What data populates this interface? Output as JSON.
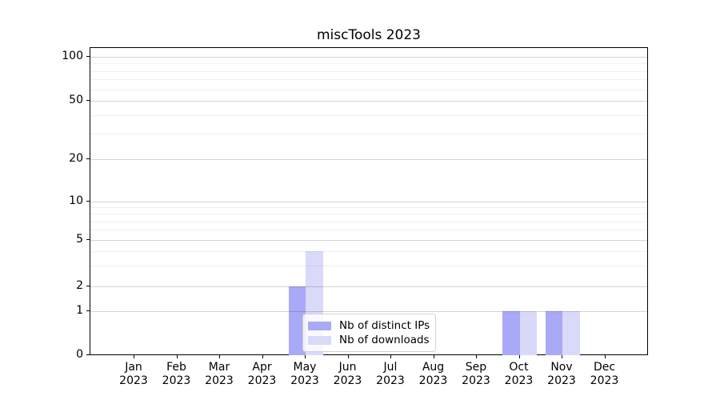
{
  "title": "miscTools 2023",
  "legend": {
    "items": [
      {
        "label": "Nb of distinct IPs",
        "color": "#a9a9f8"
      },
      {
        "label": "Nb of downloads",
        "color": "#d9d9fa"
      }
    ],
    "position": "lower center"
  },
  "chart_data": {
    "type": "bar",
    "title": "miscTools 2023",
    "categories": [
      "Jan",
      "Feb",
      "Mar",
      "Apr",
      "May",
      "Jun",
      "Jul",
      "Aug",
      "Sep",
      "Oct",
      "Nov",
      "Dec"
    ],
    "category_year": "2023",
    "series": [
      {
        "name": "Nb of distinct IPs",
        "color": "#a9a9f8",
        "values": [
          0,
          0,
          0,
          0,
          2,
          0,
          0,
          0,
          0,
          1,
          1,
          0
        ]
      },
      {
        "name": "Nb of downloads",
        "color": "#d9d9fa",
        "values": [
          0,
          0,
          0,
          0,
          4,
          0,
          0,
          0,
          0,
          1,
          1,
          0
        ]
      }
    ],
    "xlabel": "",
    "ylabel": "",
    "y_axis": {
      "scale": "symlog-like",
      "major_ticks": [
        0,
        1,
        2,
        5,
        10,
        20,
        50,
        100
      ],
      "minor_ticks": [
        3,
        4,
        6,
        7,
        8,
        9,
        30,
        40,
        60,
        70,
        80,
        90
      ],
      "range": [
        0,
        113
      ]
    },
    "grid": {
      "horizontal_major": true,
      "horizontal_minor": true,
      "vertical": false
    },
    "legend_position": "lower center",
    "bar_colors": {
      "distinct_ips": "#a9a9f8",
      "downloads": "#d9d9fa"
    },
    "gridline_color_major": "#d4d4d4",
    "gridline_color_minor": "#efefef"
  }
}
